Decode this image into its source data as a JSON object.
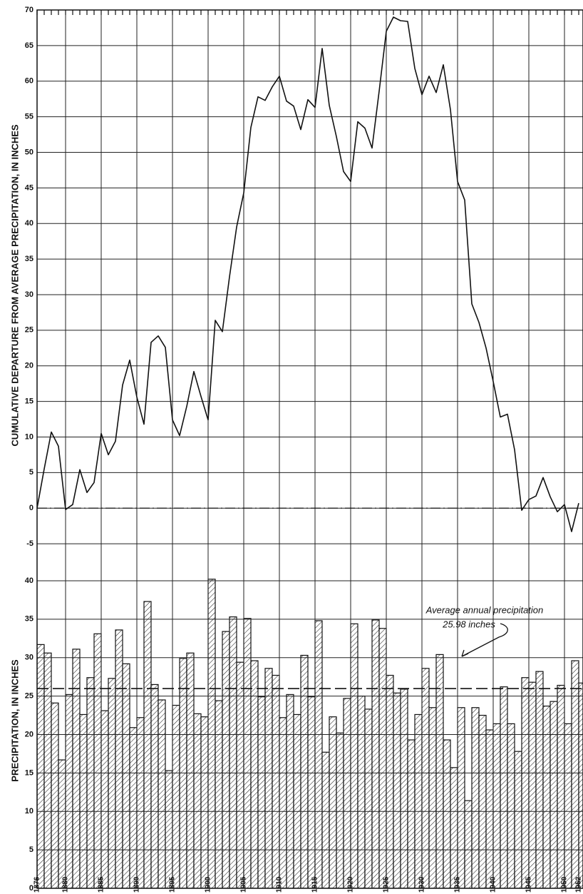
{
  "chart_data": [
    {
      "type": "line",
      "ylabel": "CUMULATIVE DEPARTURE FROM AVERAGE PRECIPITATION, IN INCHES",
      "x": [
        1876,
        1877,
        1878,
        1879,
        1880,
        1881,
        1882,
        1883,
        1884,
        1885,
        1886,
        1887,
        1888,
        1889,
        1890,
        1891,
        1892,
        1893,
        1894,
        1895,
        1896,
        1897,
        1898,
        1899,
        1900,
        1901,
        1902,
        1903,
        1904,
        1905,
        1906,
        1907,
        1908,
        1909,
        1910,
        1911,
        1912,
        1913,
        1914,
        1915,
        1916,
        1917,
        1918,
        1919,
        1920,
        1921,
        1922,
        1923,
        1924,
        1925,
        1926,
        1927,
        1928,
        1929,
        1930,
        1931,
        1932,
        1933,
        1934,
        1935,
        1936,
        1937,
        1938,
        1939,
        1940,
        1941,
        1942,
        1943,
        1944,
        1945,
        1946,
        1947,
        1948,
        1949,
        1950,
        1951,
        1952
      ],
      "values": [
        0,
        5.5,
        10.7,
        8.7,
        -0.2,
        0.5,
        5.4,
        2.2,
        3.6,
        10.5,
        7.5,
        9.4,
        17.3,
        20.8,
        15.6,
        11.8,
        23.3,
        24.2,
        22.6,
        12.4,
        10.2,
        14.3,
        19.2,
        15.7,
        12.4,
        26.4,
        24.8,
        32.5,
        39.5,
        44.3,
        53.5,
        57.8,
        57.3,
        59.2,
        60.7,
        57.2,
        56.5,
        53.2,
        57.4,
        56.3,
        64.6,
        56.6,
        52.2,
        47.3,
        45.9,
        54.3,
        53.4,
        50.6,
        58.6,
        67.0,
        69.0,
        68.5,
        68.4,
        61.8,
        58.1,
        60.7,
        58.4,
        62.3,
        56.0,
        45.9,
        43.3,
        28.7,
        26.1,
        22.5,
        17.8,
        12.8,
        13.2,
        8.2,
        -0.3,
        1.2,
        1.7,
        4.3,
        1.6,
        -0.5,
        0.5,
        -3.3,
        0.7
      ],
      "color": "#111111",
      "xlim": [
        1876,
        1952.6
      ],
      "ylim": [
        -7.5,
        70
      ],
      "yticks": [
        -5,
        0,
        5,
        10,
        15,
        20,
        25,
        30,
        35,
        40,
        45,
        50,
        55,
        60,
        65,
        70
      ],
      "grid": true
    },
    {
      "type": "bar",
      "ylabel": "PRECIPITATION, IN INCHES",
      "x": [
        1876,
        1877,
        1878,
        1879,
        1880,
        1881,
        1882,
        1883,
        1884,
        1885,
        1886,
        1887,
        1888,
        1889,
        1890,
        1891,
        1892,
        1893,
        1894,
        1895,
        1896,
        1897,
        1898,
        1899,
        1900,
        1901,
        1902,
        1903,
        1904,
        1905,
        1906,
        1907,
        1908,
        1909,
        1910,
        1911,
        1912,
        1913,
        1914,
        1915,
        1916,
        1917,
        1918,
        1919,
        1920,
        1921,
        1922,
        1923,
        1924,
        1925,
        1926,
        1927,
        1928,
        1929,
        1930,
        1931,
        1932,
        1933,
        1934,
        1935,
        1936,
        1937,
        1938,
        1939,
        1940,
        1941,
        1942,
        1943,
        1944,
        1945,
        1946,
        1947,
        1948,
        1949,
        1950,
        1951,
        1952
      ],
      "values": [
        31.7,
        30.6,
        24.1,
        16.7,
        25.2,
        31.1,
        22.6,
        27.4,
        33.1,
        23.1,
        27.3,
        33.6,
        29.2,
        20.9,
        22.2,
        37.3,
        26.5,
        24.5,
        15.3,
        23.8,
        29.9,
        30.6,
        22.7,
        22.3,
        40.2,
        24.4,
        33.4,
        35.3,
        29.4,
        35.1,
        29.6,
        24.9,
        28.6,
        27.7,
        22.2,
        25.2,
        22.6,
        30.3,
        24.9,
        34.8,
        17.7,
        22.3,
        20.2,
        24.7,
        34.4,
        25.0,
        23.3,
        34.9,
        33.8,
        27.7,
        25.4,
        25.9,
        19.3,
        22.6,
        28.6,
        23.5,
        30.4,
        19.3,
        15.7,
        23.5,
        11.4,
        23.5,
        22.5,
        20.6,
        21.4,
        26.2,
        21.4,
        17.8,
        27.4,
        26.8,
        28.2,
        23.7,
        24.3,
        26.4,
        21.4,
        29.6,
        26.7
      ],
      "color": "#111111",
      "average": 25.98,
      "annotation": [
        "Average annual precipitation",
        "25.98 inches"
      ],
      "xlim": [
        1876,
        1952.6
      ],
      "ylim": [
        0,
        42.5
      ],
      "yticks": [
        0,
        5,
        10,
        15,
        20,
        25,
        30,
        35,
        40
      ],
      "xticks": [
        1876,
        1880,
        1885,
        1890,
        1895,
        1900,
        1905,
        1910,
        1915,
        1920,
        1925,
        1930,
        1935,
        1940,
        1945,
        1950,
        1952
      ],
      "grid": true
    }
  ]
}
